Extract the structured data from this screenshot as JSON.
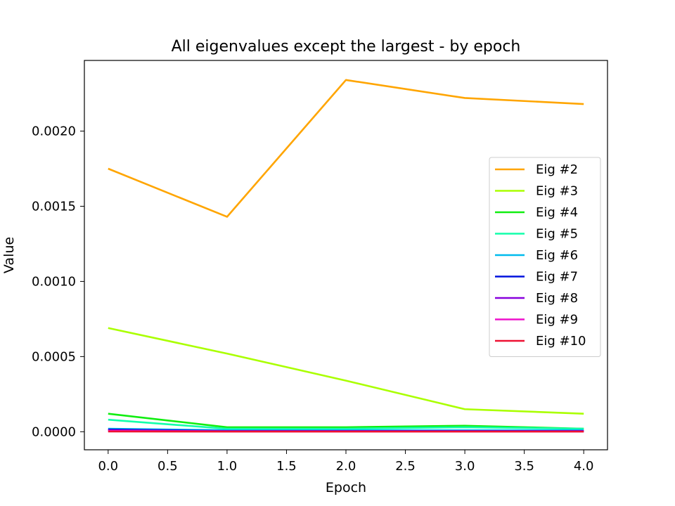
{
  "chart_data": {
    "type": "line",
    "title": "All eigenvalues except the largest - by epoch",
    "xlabel": "Epoch",
    "ylabel": "Value",
    "x": [
      0,
      1,
      2,
      3,
      4
    ],
    "xlim": [
      -0.2,
      4.2
    ],
    "ylim": [
      -0.00012,
      0.00247
    ],
    "xticks": [
      0.0,
      0.5,
      1.0,
      1.5,
      2.0,
      2.5,
      3.0,
      3.5,
      4.0
    ],
    "xtick_labels": [
      "0.0",
      "0.5",
      "1.0",
      "1.5",
      "2.0",
      "2.5",
      "3.0",
      "3.5",
      "4.0"
    ],
    "yticks": [
      0.0,
      0.0005,
      0.001,
      0.0015,
      0.002
    ],
    "ytick_labels": [
      "0.0000",
      "0.0005",
      "0.0010",
      "0.0015",
      "0.0020"
    ],
    "grid": false,
    "legend_position": "center-right",
    "series": [
      {
        "name": "Eig #2",
        "color": "#ffa500",
        "values": [
          0.00175,
          0.00143,
          0.00234,
          0.00222,
          0.00218
        ]
      },
      {
        "name": "Eig #3",
        "color": "#aaff00",
        "values": [
          0.00069,
          0.00052,
          0.00034,
          0.00015,
          0.00012
        ]
      },
      {
        "name": "Eig #4",
        "color": "#11ee11",
        "values": [
          0.00012,
          3e-05,
          3e-05,
          4e-05,
          2e-05
        ]
      },
      {
        "name": "Eig #5",
        "color": "#11ffaa",
        "values": [
          8e-05,
          2e-05,
          2e-05,
          3e-05,
          2e-05
        ]
      },
      {
        "name": "Eig #6",
        "color": "#00bbee",
        "values": [
          2e-05,
          1e-05,
          1e-05,
          1e-05,
          1e-05
        ]
      },
      {
        "name": "Eig #7",
        "color": "#0011dd",
        "values": [
          1.5e-05,
          5e-06,
          5e-06,
          5e-06,
          5e-06
        ]
      },
      {
        "name": "Eig #8",
        "color": "#8800dd",
        "values": [
          1e-05,
          3e-06,
          3e-06,
          3e-06,
          3e-06
        ]
      },
      {
        "name": "Eig #9",
        "color": "#ee11cc",
        "values": [
          5e-06,
          2e-06,
          2e-06,
          2e-06,
          2e-06
        ]
      },
      {
        "name": "Eig #10",
        "color": "#ee1133",
        "values": [
          2e-06,
          1e-06,
          1e-06,
          1e-06,
          1e-06
        ]
      }
    ]
  }
}
